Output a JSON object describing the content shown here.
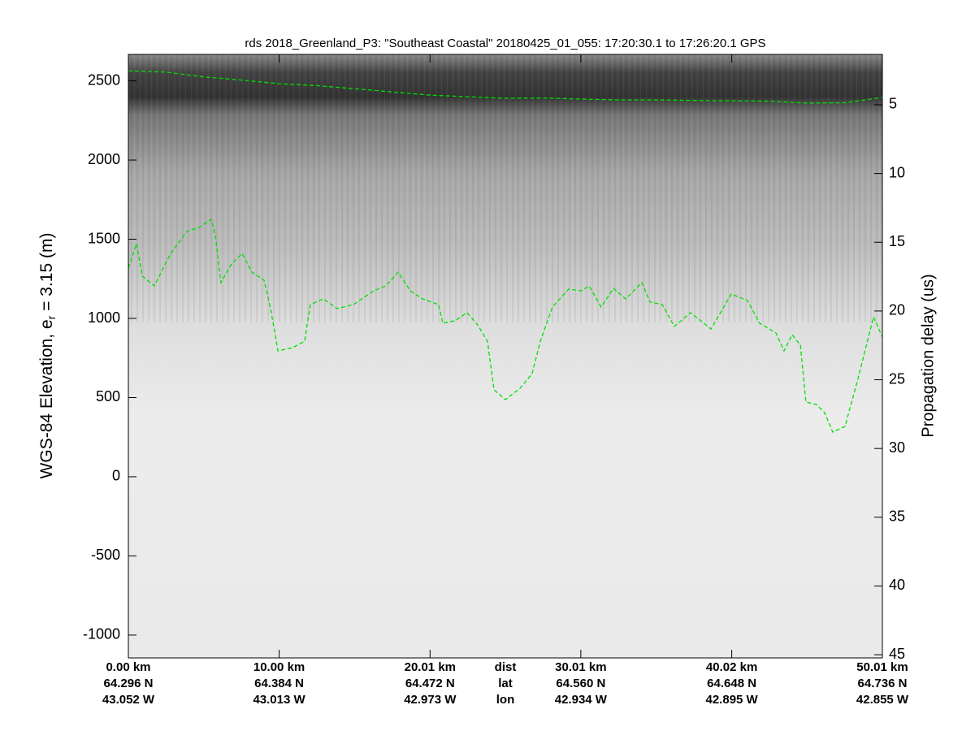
{
  "chart_data": {
    "type": "line",
    "title": "rds 2018_Greenland_P3: \"Southeast Coastal\"  20180425_01_055: 17:20:30.1 to 17:26:20.1 GPS",
    "ylabel": {
      "main": "WGS-84 Elevation, e",
      "subscript": "r",
      "rest": " = 3.15 (m)"
    },
    "y2label": "Propagation delay (us)",
    "xlim": [
      0,
      50.01
    ],
    "xticks": [
      {
        "value": 0,
        "label": "0.00 km"
      },
      {
        "value": 10.0,
        "label": "10.00 km"
      },
      {
        "value": 20.01,
        "label": "20.01 km"
      },
      {
        "value": 30.01,
        "label": "30.01 km"
      },
      {
        "value": 40.02,
        "label": "40.02 km"
      },
      {
        "value": 50.01,
        "label": "50.01 km"
      }
    ],
    "lat_labels": [
      "64.296 N",
      "64.384 N",
      "64.472 N",
      "64.560 N",
      "64.648 N",
      "64.736 N"
    ],
    "lon_labels": [
      "43.052 W",
      "43.013 W",
      "42.973 W",
      "42.934 W",
      "42.895 W",
      "42.855 W"
    ],
    "row_labels": [
      "dist",
      "lat",
      "lon"
    ],
    "ylim": [
      -1144,
      2667
    ],
    "yticks": [
      -1000,
      -500,
      0,
      500,
      1000,
      1500,
      2000,
      2500
    ],
    "y2lim": [
      1.34,
      45.23
    ],
    "y2ticks": [
      5,
      10,
      15,
      20,
      25,
      30,
      35,
      40,
      45
    ],
    "y2_inverted": true,
    "series": [
      {
        "color": "#00e000",
        "x": [
          0,
          2.5,
          5,
          7.5,
          10,
          12.5,
          15,
          17.5,
          20,
          22.5,
          25,
          27.5,
          30,
          32.5,
          35,
          37.5,
          40,
          42.5,
          45,
          47.5,
          50.01
        ],
        "values": [
          2564,
          2555,
          2525,
          2505,
          2482,
          2470,
          2450,
          2430,
          2410,
          2400,
          2390,
          2392,
          2385,
          2380,
          2380,
          2376,
          2374,
          2372,
          2360,
          2362,
          2395
        ]
      },
      {
        "color": "#00e000",
        "x": [
          0.0,
          0.54,
          0.92,
          1.72,
          2.8,
          3.88,
          4.69,
          5.5,
          5.77,
          6.14,
          6.85,
          7.55,
          8.19,
          9.0,
          9.43,
          9.92,
          10.89,
          11.69,
          12.07,
          12.93,
          13.85,
          14.93,
          16.27,
          17.08,
          17.89,
          18.7,
          19.51,
          20.58,
          20.85,
          21.66,
          22.47,
          23.17,
          23.82,
          24.25,
          25.0,
          25.98,
          26.78,
          27.32,
          28.13,
          29.21,
          30.02,
          30.56,
          31.36,
          32.17,
          32.98,
          34.06,
          34.6,
          35.41,
          36.21,
          37.29,
          38.64,
          39.99,
          41.06,
          41.87,
          42.95,
          43.49,
          44.03,
          44.57,
          44.94,
          45.64,
          46.18,
          46.72,
          47.53,
          48.34,
          49.42,
          50.01
        ],
        "values": [
          1318,
          1472,
          1267,
          1205,
          1410,
          1549,
          1574,
          1626,
          1523,
          1226,
          1344,
          1410,
          1292,
          1241,
          1062,
          795,
          815,
          856,
          1087,
          1123,
          1062,
          1087,
          1174,
          1205,
          1292,
          1174,
          1123,
          1087,
          969,
          985,
          1036,
          959,
          856,
          549,
          487,
          559,
          651,
          856,
          1072,
          1185,
          1174,
          1205,
          1072,
          1190,
          1123,
          1226,
          1103,
          1087,
          949,
          1036,
          933,
          1154,
          1113,
          969,
          908,
          795,
          897,
          831,
          472,
          456,
          405,
          282,
          318,
          600,
          1010,
          882
        ]
      }
    ]
  }
}
